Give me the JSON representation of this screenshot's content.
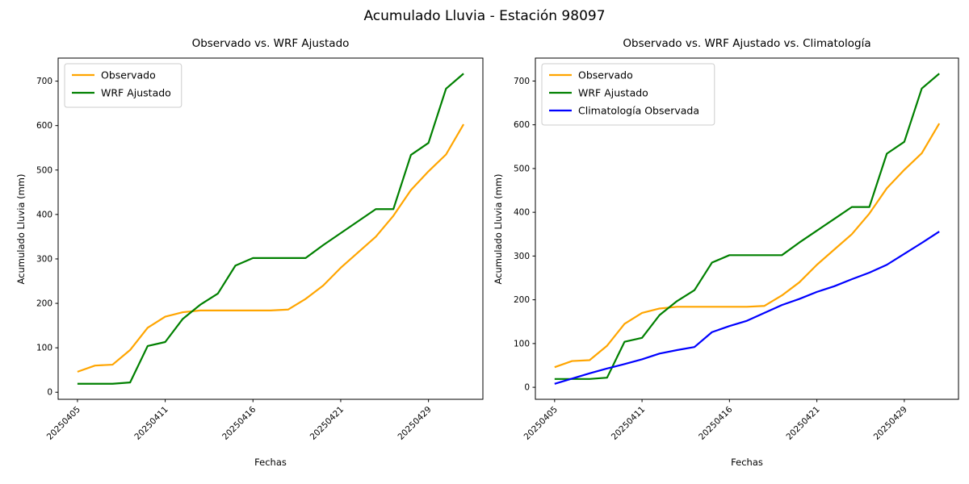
{
  "figure": {
    "suptitle": "Acumulado Lluvia - Estación 98097",
    "background_color": "#ffffff"
  },
  "chart_data": [
    {
      "type": "line",
      "title": "Observado vs. WRF Ajustado",
      "xlabel": "Fechas",
      "ylabel": "Acumulado Lluvia (mm)",
      "n_points": 23,
      "x_tick_positions": [
        0,
        5,
        10,
        15,
        20
      ],
      "x_tick_labels": [
        "20250405",
        "20250411",
        "20250416",
        "20250421",
        "20250429"
      ],
      "x_tick_rotation": 45,
      "y_ticks": [
        0,
        100,
        200,
        300,
        400,
        500,
        600,
        700
      ],
      "grid": false,
      "legend_position": "upper left",
      "series": [
        {
          "name": "Observado",
          "color": "#ffa500",
          "values": [
            46,
            60,
            62,
            95,
            145,
            170,
            180,
            184,
            184,
            184,
            184,
            184,
            186,
            210,
            240,
            280,
            315,
            350,
            397,
            455,
            497,
            535,
            603
          ]
        },
        {
          "name": "WRF Ajustado",
          "color": "#008000",
          "values": [
            19,
            19,
            19,
            22,
            104,
            113,
            165,
            197,
            222,
            285,
            302,
            302,
            302,
            302,
            331,
            358,
            385,
            412,
            412,
            534,
            561,
            683,
            717
          ]
        }
      ]
    },
    {
      "type": "line",
      "title": "Observado vs. WRF Ajustado vs. Climatología",
      "xlabel": "Fechas",
      "ylabel": "Acumulado Lluvia (mm)",
      "n_points": 23,
      "x_tick_positions": [
        0,
        5,
        10,
        15,
        20
      ],
      "x_tick_labels": [
        "20250405",
        "20250411",
        "20250416",
        "20250421",
        "20250429"
      ],
      "x_tick_rotation": 45,
      "y_ticks": [
        0,
        100,
        200,
        300,
        400,
        500,
        600,
        700
      ],
      "grid": false,
      "legend_position": "upper left",
      "series": [
        {
          "name": "Observado",
          "color": "#ffa500",
          "values": [
            46,
            60,
            62,
            95,
            145,
            170,
            180,
            184,
            184,
            184,
            184,
            184,
            186,
            210,
            240,
            280,
            315,
            350,
            397,
            455,
            497,
            535,
            603
          ]
        },
        {
          "name": "WRF Ajustado",
          "color": "#008000",
          "values": [
            19,
            19,
            19,
            22,
            104,
            113,
            165,
            197,
            222,
            285,
            302,
            302,
            302,
            302,
            331,
            358,
            385,
            412,
            412,
            534,
            561,
            683,
            717
          ]
        },
        {
          "name": "Climatología Observada",
          "color": "#0000ff",
          "values": [
            8,
            20,
            32,
            43,
            53,
            64,
            77,
            85,
            92,
            126,
            140,
            152,
            170,
            188,
            202,
            218,
            231,
            247,
            262,
            280,
            305,
            330,
            356
          ]
        }
      ]
    }
  ]
}
